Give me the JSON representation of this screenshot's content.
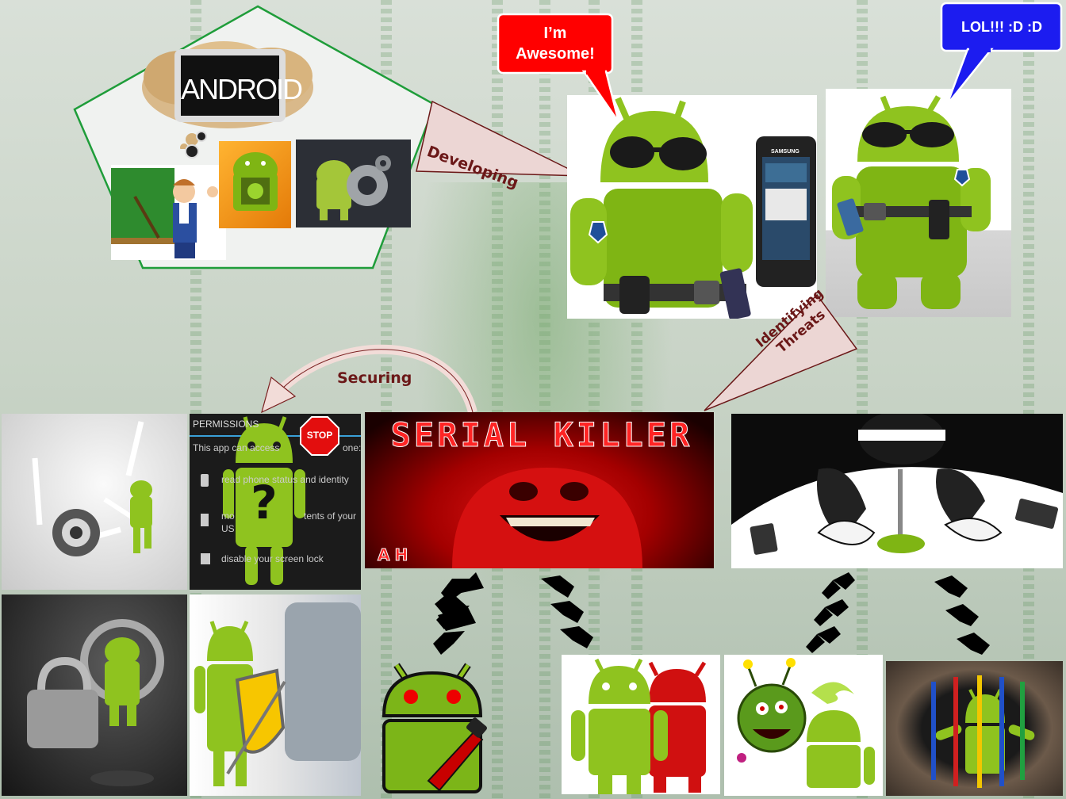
{
  "bubbles": {
    "awesome": "I’m Awesome!",
    "lol": "LOL!!! :D :D"
  },
  "arrows": {
    "developing": "Developing",
    "identifying": "Identifying Threats",
    "securing": "Securing"
  },
  "board": {
    "android_text": "ANDROID"
  },
  "panel": {
    "serial_killer": "SERIAL KILLER",
    "ah": "AH",
    "permissions_title": "PERMISSIONS",
    "permissions_intro": "This app can access",
    "permissions_intro_end": "one:",
    "perm_item_1": "read phone status and identity",
    "perm_item_2_start": "mo",
    "perm_item_2_end": "tents of your",
    "perm_item_2_line2": "US",
    "perm_item_3": "disable your screen lock",
    "stop_sign": "STOP",
    "phone_brand": "SAMSUNG"
  },
  "colors": {
    "android_green": "#8fc31f",
    "bubble_red": "#ff0000",
    "bubble_blue": "#1c1cf0",
    "arrow_pink": "#ecd6d4",
    "arrow_label": "#6b1818",
    "pentagon_stroke": "#1f9d3a"
  }
}
